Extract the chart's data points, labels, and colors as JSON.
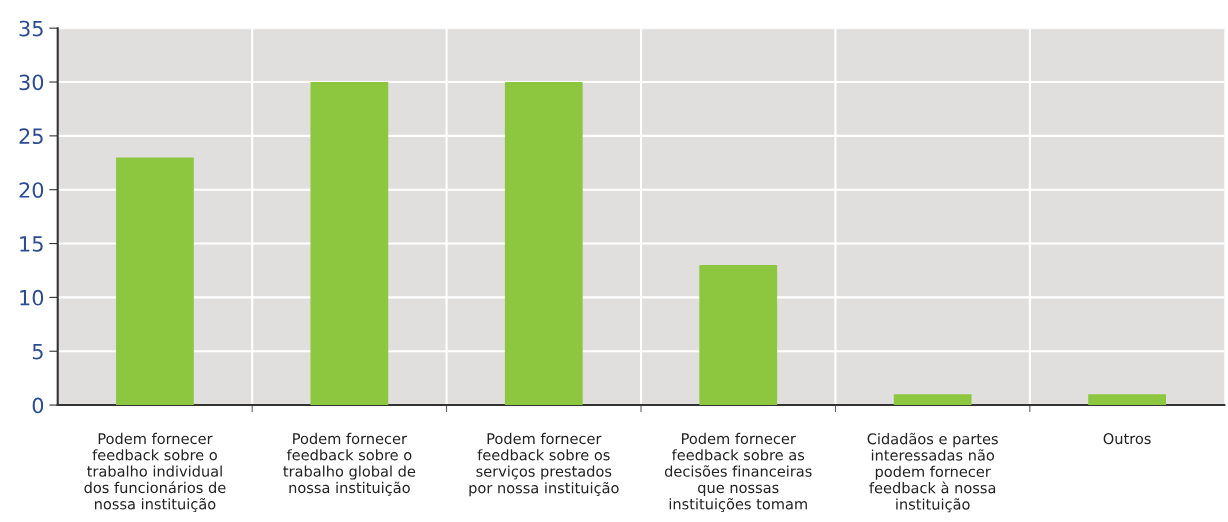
{
  "chart_data": {
    "type": "bar",
    "categories": [
      "Podem fornecer\nfeedback sobre o\ntrabalho individual\ndos funcionários de\nnossa instituição",
      "Podem fornecer\nfeedback sobre o\ntrabalho global de\nnossa instituição",
      "Podem fornecer\nfeedback sobre os\nserviços prestados\npor nossa instituição",
      "Podem fornecer\nfeedback sobre as\ndecisões financeiras\nque nossas\ninstituições tomam",
      "Cidadãos e partes\ninteressadas não\npodem fornecer\nfeedback à nossa\ninstituição",
      "Outros"
    ],
    "values": [
      23,
      30,
      30,
      13,
      1,
      1
    ],
    "color": "#8dc63f",
    "ylim": [
      0,
      35
    ],
    "yticks": [
      0,
      5,
      10,
      15,
      20,
      25,
      30,
      35
    ],
    "grid": true
  }
}
